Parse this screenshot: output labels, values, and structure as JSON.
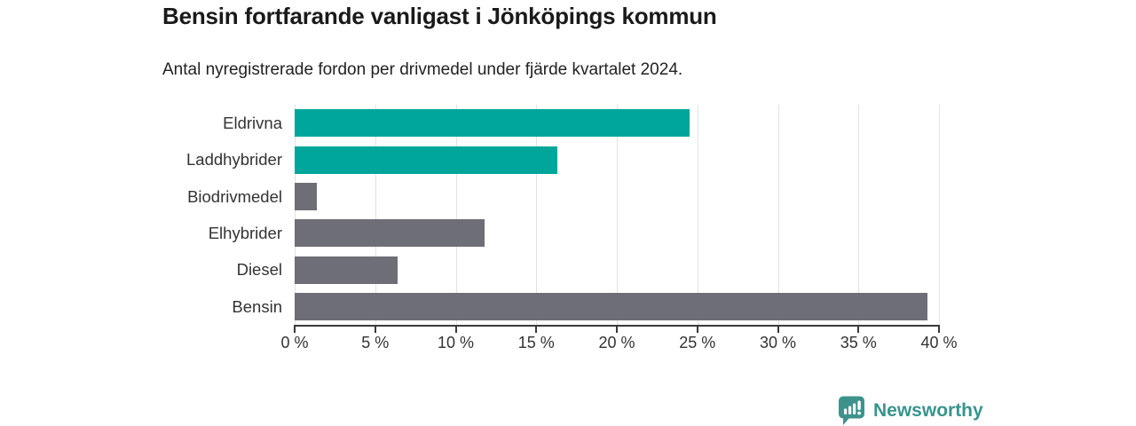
{
  "header": {
    "title": "Bensin fortfarande vanligast i Jönköpings kommun",
    "subtitle": "Antal nyregistrerade fordon per drivmedel under fjärde kvartalet 2024."
  },
  "chart_data": {
    "type": "bar",
    "orientation": "horizontal",
    "title": "Bensin fortfarande vanligast i Jönköpings kommun",
    "subtitle": "Antal nyregistrerade fordon per drivmedel under fjärde kvartalet 2024.",
    "categories": [
      "Eldrivna",
      "Laddhybrider",
      "Biodrivmedel",
      "Elhybrider",
      "Diesel",
      "Bensin"
    ],
    "values": [
      24.5,
      16.3,
      1.4,
      11.8,
      6.4,
      39.3
    ],
    "unit": "%",
    "bar_colors": [
      "#00a699",
      "#00a699",
      "#6e6e76",
      "#6e6e76",
      "#6e6e76",
      "#6e6e76"
    ],
    "xlim": [
      0,
      40
    ],
    "x_ticks": [
      0,
      5,
      10,
      15,
      20,
      25,
      30,
      35,
      40
    ],
    "x_tick_labels": [
      "0 %",
      "5 %",
      "10 %",
      "15 %",
      "20 %",
      "25 %",
      "30 %",
      "35 %",
      "40 %"
    ],
    "grid": "vertical",
    "gridline_color": "#e2e2e2",
    "axis_color": "#3a3a3a",
    "legend": "none",
    "xlabel": "",
    "ylabel": ""
  },
  "footer": {
    "brand": "Newsworthy",
    "brand_color": "#38948d",
    "logo_icon": "bar-chart-speech-bubble-icon",
    "logo_fill": "#3d938c"
  },
  "colors": {
    "accent_teal": "#00a699",
    "bar_gray": "#6e6e76",
    "title_text": "#1a1a1a",
    "body_text": "#333333",
    "background": "#ffffff"
  }
}
